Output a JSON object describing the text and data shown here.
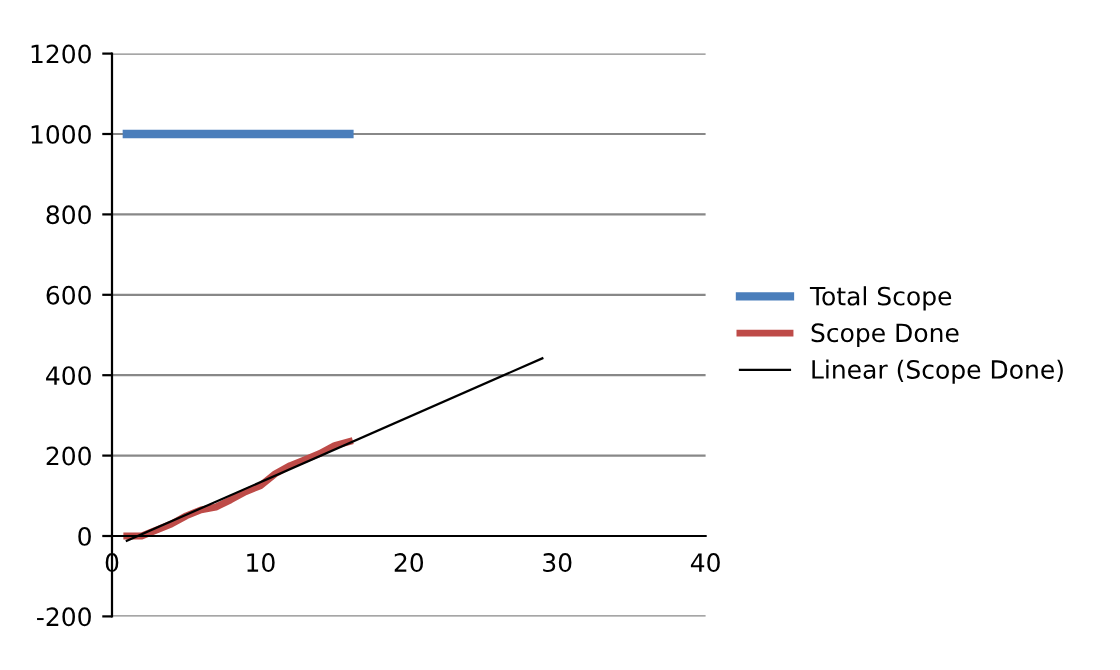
{
  "chart_data": {
    "type": "line",
    "x": [
      1,
      2,
      3,
      4,
      5,
      6,
      7,
      8,
      9,
      10,
      11,
      12,
      13,
      14,
      15,
      16
    ],
    "series": [
      {
        "name": "Total Scope",
        "color": "#4a7ebb",
        "values": [
          1000,
          1000,
          1000,
          1000,
          1000,
          1000,
          1000,
          1000,
          1000,
          1000,
          1000,
          1000,
          1000,
          1000,
          1000,
          1000
        ]
      },
      {
        "name": "Scope Done",
        "color": "#be4b48",
        "values": [
          0,
          0,
          15,
          30,
          50,
          65,
          72,
          90,
          110,
          125,
          155,
          175,
          190,
          205,
          225,
          235
        ]
      },
      {
        "name": "Linear (Scope Done)",
        "color": "#000000",
        "x": [
          1,
          29
        ],
        "values": [
          -12,
          442
        ]
      }
    ],
    "xlim": [
      0,
      40
    ],
    "xticks": [
      0,
      10,
      20,
      30,
      40
    ],
    "ylim": [
      -200,
      1200
    ],
    "yticks": [
      -200,
      0,
      200,
      400,
      600,
      800,
      1000,
      1200
    ],
    "grid": "y",
    "legend": "right",
    "marker": "none",
    "line_style": "solid"
  }
}
